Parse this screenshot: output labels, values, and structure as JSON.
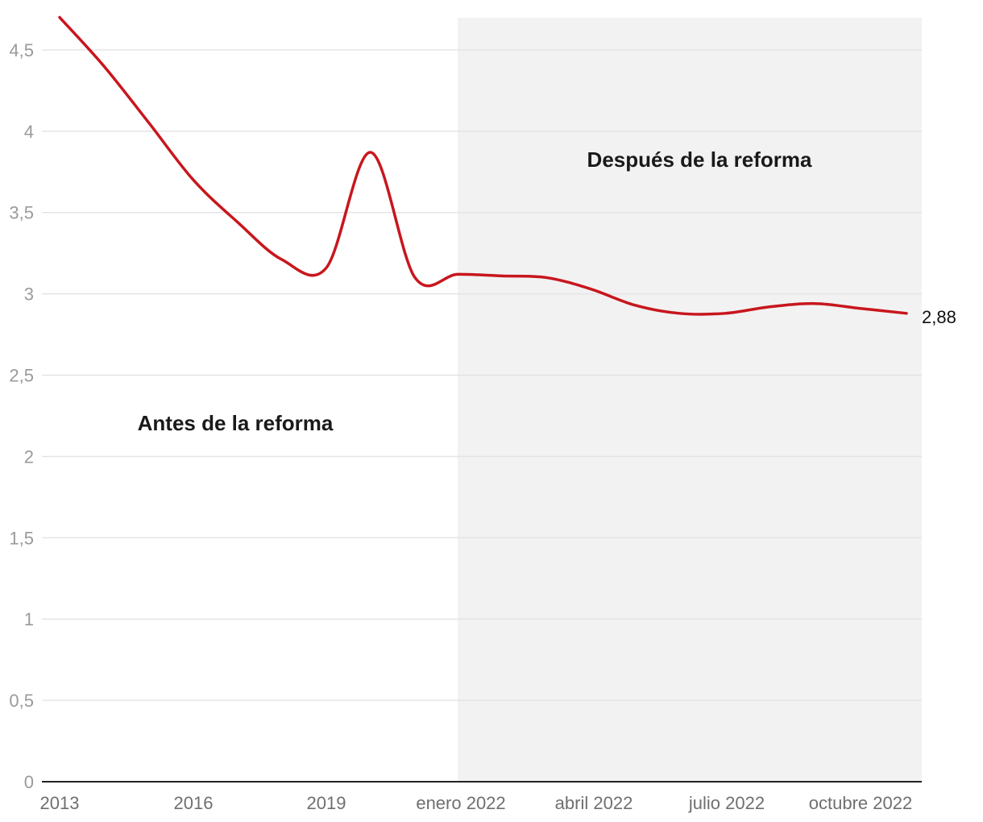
{
  "chart_data": {
    "type": "line",
    "title": "",
    "xlabel": "",
    "ylabel": "",
    "ylim": [
      0,
      4.7
    ],
    "y_ticks": [
      "0",
      "0,5",
      "1",
      "1,5",
      "2",
      "2,5",
      "3",
      "3,5",
      "4",
      "4,5"
    ],
    "x_ticks": [
      "2013",
      "2016",
      "2019",
      "enero 2022",
      "abril 2022",
      "julio 2022",
      "octubre 2022"
    ],
    "grid": true,
    "shaded_region": {
      "from": "enero 2022",
      "to": "diciembre 2022",
      "color": "#f2f2f2"
    },
    "annotations": {
      "before": "Antes de la reforma",
      "after": "Después de la reforma"
    },
    "series": [
      {
        "color": "#c8161d",
        "points": [
          {
            "x": "2013",
            "y": 4.7
          },
          {
            "x": "2014",
            "y": 4.4
          },
          {
            "x": "2015",
            "y": 4.05
          },
          {
            "x": "2016",
            "y": 3.7
          },
          {
            "x": "2017",
            "y": 3.44
          },
          {
            "x": "2018",
            "y": 3.21
          },
          {
            "x": "2019",
            "y": 3.16
          },
          {
            "x": "2020",
            "y": 3.87
          },
          {
            "x": "2021",
            "y": 3.1
          },
          {
            "x": "enero 2022",
            "y": 3.12
          },
          {
            "x": "febrero 2022",
            "y": 3.11
          },
          {
            "x": "marzo 2022",
            "y": 3.1
          },
          {
            "x": "abril 2022",
            "y": 3.03
          },
          {
            "x": "mayo 2022",
            "y": 2.93
          },
          {
            "x": "junio 2022",
            "y": 2.88
          },
          {
            "x": "julio 2022",
            "y": 2.88
          },
          {
            "x": "agosto 2022",
            "y": 2.92
          },
          {
            "x": "septiembre 2022",
            "y": 2.94
          },
          {
            "x": "octubre 2022",
            "y": 2.91
          },
          {
            "x": "noviembre 2022",
            "y": 2.88
          }
        ]
      }
    ],
    "end_label": "2,88"
  }
}
